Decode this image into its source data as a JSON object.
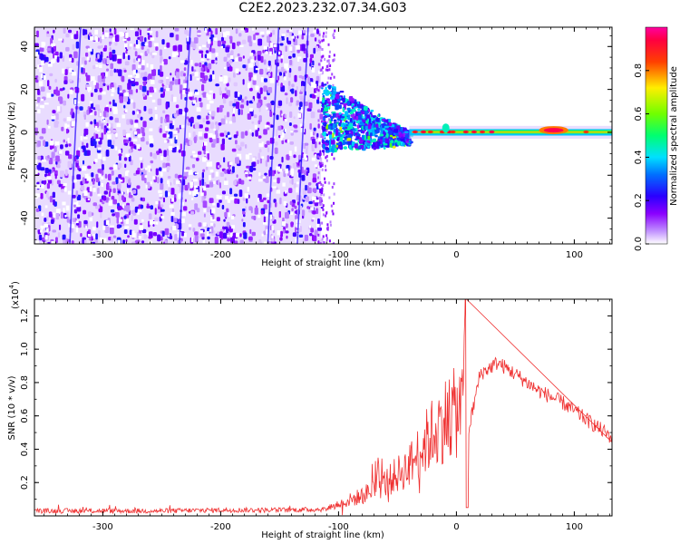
{
  "title": "C2E2.2023.232.07.34.G03",
  "colors": {
    "snr_line": "#ef3030",
    "frame": "#000000",
    "background": "#ffffff",
    "colorbar": [
      "#9400ff",
      "#3a00ff",
      "#0040ff",
      "#00d0ff",
      "#00ff60",
      "#80ff00",
      "#ffe000",
      "#ff5000",
      "#ff0040",
      "#ff00a0"
    ]
  },
  "chart_data": [
    {
      "type": "heatmap",
      "title": "C2E2.2023.232.07.34.G03",
      "xlabel": "Height of straight line (km)",
      "ylabel": "Frequency (Hz)",
      "xlim": [
        -358,
        132
      ],
      "ylim": [
        -52,
        49
      ],
      "xticks": [
        "-300",
        "-200",
        "-100",
        "0",
        "100"
      ],
      "yticks": [
        "-40",
        "-20",
        "0",
        "20",
        "40"
      ],
      "colorbar": {
        "label": "Normalized spectral amplitude",
        "range": [
          0,
          1
        ],
        "ticks": [
          "0.0",
          "0.2",
          "0.4",
          "0.6",
          "0.8"
        ]
      },
      "regions": [
        {
          "name": "noise",
          "x": [
            -358,
            -115
          ],
          "freq": [
            -52,
            49
          ],
          "amplitude": 0.15
        },
        {
          "name": "transition",
          "x": [
            -115,
            -40
          ],
          "freq": [
            -12,
            16
          ],
          "amplitude": 0.35
        },
        {
          "name": "carrier",
          "x": [
            -40,
            132
          ],
          "freq": [
            -1.5,
            1.5
          ],
          "amplitude": 0.55
        },
        {
          "name": "peak",
          "x": [
            70,
            95
          ],
          "freq": [
            0,
            2
          ],
          "amplitude": 0.95
        }
      ]
    },
    {
      "type": "line",
      "xlabel": "Height of straight line (km)",
      "ylabel": "SNR (10 * v/v)",
      "scale_label": "(x10",
      "scale_exp": "4",
      "xlim": [
        -358,
        132
      ],
      "ylim": [
        0,
        1.3
      ],
      "xticks": [
        "-300",
        "-200",
        "-100",
        "0",
        "100"
      ],
      "yticks": [
        "0.2",
        "0.4",
        "0.6",
        "0.8",
        "1.0",
        "1.2"
      ],
      "series": [
        {
          "x": [
            -358,
            -300,
            -250,
            -200,
            -150,
            -110,
            -100,
            -80,
            -60,
            -40,
            -30,
            -20,
            -10,
            0,
            5,
            8,
            10,
            20,
            35,
            50,
            70,
            90,
            110,
            132
          ],
          "y": [
            0.03,
            0.03,
            0.03,
            0.035,
            0.035,
            0.04,
            0.07,
            0.12,
            0.2,
            0.3,
            0.4,
            0.5,
            0.58,
            0.62,
            0.65,
            1.3,
            0.5,
            0.85,
            0.92,
            0.85,
            0.75,
            0.68,
            0.58,
            0.47
          ]
        }
      ]
    }
  ]
}
